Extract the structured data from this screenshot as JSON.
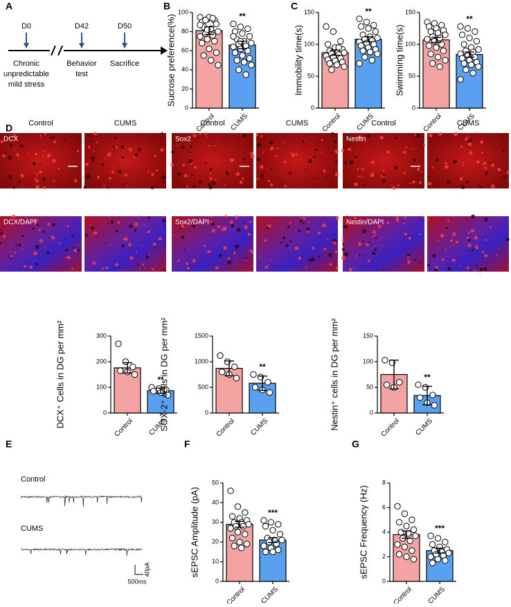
{
  "panels": {
    "labels": [
      "A",
      "B",
      "C",
      "D",
      "E",
      "F",
      "G"
    ],
    "timeline": {
      "days": [
        "D0",
        "D42",
        "D50"
      ],
      "notes": [
        [
          "Chronic",
          "unpredictable",
          "mild stress"
        ],
        [
          "Behavior",
          "test"
        ],
        [
          "Sacrifice"
        ]
      ]
    },
    "images": {
      "headers": [
        "Control",
        "CUMS"
      ],
      "groups": [
        {
          "top": "DCX",
          "bottom": "DCX/DAPI"
        },
        {
          "top": "Sox2",
          "bottom": "Sox2/DAPI"
        },
        {
          "top": "Nestin",
          "bottom": "Nestin/DAPI"
        }
      ]
    },
    "traces": {
      "labels": [
        "Control",
        "CUMS"
      ],
      "scale_y": "40pA",
      "scale_x": "500ms"
    }
  },
  "chart_data": [
    {
      "type": "bar",
      "ylabel": "Sucrose preference(%)",
      "categories": [
        "Control",
        "CUMS"
      ],
      "colors": [
        "#f4a3a3",
        "#5aa0f0"
      ],
      "values": [
        81,
        66
      ],
      "errors": [
        4,
        4
      ],
      "ylim": [
        0,
        100
      ],
      "yticks": [
        0,
        20,
        40,
        60,
        80,
        100
      ],
      "annotation": "**",
      "points": [
        [
          95,
          93,
          92,
          90,
          95,
          88,
          85,
          83,
          80,
          78,
          76,
          75,
          72,
          70,
          68,
          62,
          58,
          55,
          50,
          45,
          92,
          94,
          87,
          82
        ],
        [
          88,
          85,
          83,
          80,
          78,
          75,
          72,
          70,
          68,
          67,
          65,
          64,
          62,
          60,
          58,
          55,
          52,
          50,
          48,
          45,
          40,
          35,
          75,
          70
        ]
      ]
    },
    {
      "type": "bar",
      "ylabel": "Immobility time(s)",
      "categories": [
        "Control",
        "CUMS"
      ],
      "colors": [
        "#f4a3a3",
        "#5aa0f0"
      ],
      "values": [
        87,
        108
      ],
      "errors": [
        4,
        4
      ],
      "ylim": [
        0,
        150
      ],
      "yticks": [
        0,
        50,
        100,
        150
      ],
      "annotation": "**",
      "points": [
        [
          128,
          120,
          105,
          100,
          95,
          92,
          90,
          88,
          87,
          85,
          84,
          82,
          80,
          78,
          76,
          74,
          72,
          70,
          68,
          65,
          60,
          95
        ],
        [
          140,
          135,
          130,
          128,
          125,
          120,
          115,
          112,
          110,
          108,
          106,
          104,
          102,
          100,
          98,
          95,
          92,
          90,
          88,
          85,
          80,
          75,
          70
        ]
      ]
    },
    {
      "type": "bar",
      "ylabel": "Swimming time(s)",
      "categories": [
        "Control",
        "CUMS"
      ],
      "colors": [
        "#f4a3a3",
        "#5aa0f0"
      ],
      "values": [
        107,
        84
      ],
      "errors": [
        4,
        4
      ],
      "ylim": [
        0,
        150
      ],
      "yticks": [
        0,
        50,
        100,
        150
      ],
      "annotation": "**",
      "points": [
        [
          135,
          133,
          130,
          128,
          125,
          122,
          120,
          118,
          115,
          112,
          110,
          108,
          105,
          100,
          98,
          95,
          90,
          85,
          80,
          75,
          70,
          65
        ],
        [
          128,
          125,
          120,
          115,
          110,
          105,
          100,
          95,
          92,
          90,
          88,
          85,
          82,
          80,
          78,
          75,
          72,
          70,
          68,
          65,
          60,
          55,
          45
        ]
      ]
    },
    {
      "type": "bar",
      "ylabel": "DCX⁺ Cells in DG per mm²",
      "categories": [
        "Control",
        "CUMS"
      ],
      "colors": [
        "#f4a3a3",
        "#5aa0f0"
      ],
      "values": [
        176,
        87
      ],
      "errors": [
        20,
        10
      ],
      "ylim": [
        0,
        300
      ],
      "yticks": [
        0,
        100,
        200,
        300
      ],
      "annotation": "**",
      "points": [
        [
          270,
          200,
          180,
          165,
          160,
          150
        ],
        [
          100,
          95,
          90,
          85,
          80,
          70
        ]
      ]
    },
    {
      "type": "bar",
      "ylabel": "SOX-2⁺ cells in DG per mm²",
      "categories": [
        "Control",
        "CUMS"
      ],
      "colors": [
        "#f4a3a3",
        "#5aa0f0"
      ],
      "values": [
        870,
        580
      ],
      "errors": [
        145,
        140
      ],
      "ylim": [
        0,
        1500
      ],
      "yticks": [
        0,
        500,
        1000,
        1500
      ],
      "annotation": "**",
      "points": [
        [
          1120,
          1000,
          900,
          800,
          750,
          680
        ],
        [
          750,
          700,
          600,
          500,
          450,
          400
        ]
      ]
    },
    {
      "type": "bar",
      "ylabel": "Nestin⁺ cells in DG per mm²",
      "categories": [
        "Control",
        "CUMS"
      ],
      "colors": [
        "#f4a3a3",
        "#5aa0f0"
      ],
      "values": [
        75,
        34
      ],
      "errors": [
        28,
        18
      ],
      "ylim": [
        0,
        150
      ],
      "yticks": [
        0,
        50,
        100,
        150
      ],
      "annotation": "**",
      "points": [
        [
          103,
          98,
          60,
          55,
          50
        ],
        [
          55,
          50,
          35,
          30,
          20,
          15
        ]
      ]
    },
    {
      "type": "bar",
      "ylabel": "sEPSC Amplitude (pA)",
      "categories": [
        "Control",
        "CUMS"
      ],
      "colors": [
        "#f4a3a3",
        "#5aa0f0"
      ],
      "values": [
        29,
        21
      ],
      "errors": [
        1.5,
        1.2
      ],
      "ylim": [
        0,
        50
      ],
      "yticks": [
        0,
        10,
        20,
        30,
        40,
        50
      ],
      "annotation": "***",
      "points": [
        [
          46,
          38,
          35,
          33,
          32,
          31,
          30,
          30,
          29,
          28,
          28,
          27,
          25,
          24,
          22,
          20,
          19,
          18,
          17
        ],
        [
          31,
          30,
          29,
          28,
          26,
          24,
          22,
          21,
          21,
          20,
          19,
          18,
          17,
          16,
          15,
          15
        ]
      ]
    },
    {
      "type": "bar",
      "ylabel": "sEPSC Frequency (Hz)",
      "categories": [
        "Control",
        "CUMS"
      ],
      "colors": [
        "#f4a3a3",
        "#5aa0f0"
      ],
      "values": [
        3.8,
        2.5
      ],
      "errors": [
        0.3,
        0.2
      ],
      "ylim": [
        0,
        8
      ],
      "yticks": [
        0,
        2,
        4,
        6,
        8
      ],
      "annotation": "***",
      "points": [
        [
          6.1,
          5.5,
          5.0,
          4.8,
          4.5,
          4.2,
          4.0,
          3.9,
          3.7,
          3.5,
          3.3,
          3.0,
          2.8,
          2.5,
          2.2,
          2.0,
          1.8
        ],
        [
          3.7,
          3.5,
          3.2,
          3.0,
          2.8,
          2.6,
          2.5,
          2.4,
          2.3,
          2.2,
          2.1,
          2.0,
          1.8,
          1.7,
          1.5
        ]
      ]
    }
  ]
}
